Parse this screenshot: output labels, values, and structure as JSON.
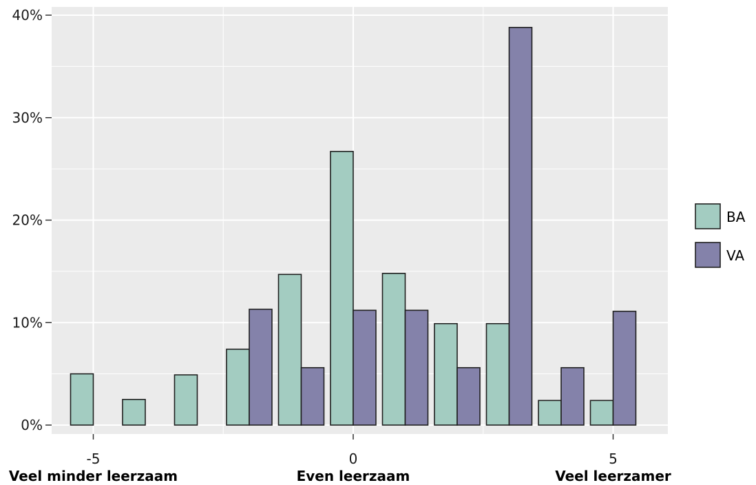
{
  "chart_data": {
    "type": "bar",
    "x": [
      -5,
      -4,
      -3,
      -2,
      -1,
      0,
      1,
      2,
      3,
      4,
      5
    ],
    "series": [
      {
        "name": "BA",
        "color": "#a3ccc1",
        "values": [
          5,
          2.5,
          4.9,
          7.4,
          14.7,
          26.7,
          14.8,
          9.9,
          9.9,
          2.4,
          2.4
        ]
      },
      {
        "name": "VA",
        "color": "#8482aa",
        "values": [
          0,
          0,
          0,
          11.3,
          5.6,
          11.2,
          11.2,
          5.6,
          38.8,
          5.6,
          11.1
        ]
      }
    ],
    "xticks": [
      {
        "value": -5,
        "label": "-5",
        "sublabel": "Veel minder leerzaam"
      },
      {
        "value": 0,
        "label": "0",
        "sublabel": "Even leerzaam"
      },
      {
        "value": 5,
        "label": "5",
        "sublabel": "Veel leerzamer"
      }
    ],
    "yticks": [
      {
        "value": 0,
        "label": "0%"
      },
      {
        "value": 10,
        "label": "10%"
      },
      {
        "value": 20,
        "label": "20%"
      },
      {
        "value": 30,
        "label": "30%"
      },
      {
        "value": 40,
        "label": "40%"
      }
    ],
    "ylim": [
      0,
      40.5
    ],
    "xlim": [
      -5.95,
      5.95
    ],
    "xlabel": "",
    "ylabel": "",
    "title": "",
    "grid": true,
    "panel_background": "#ebebeb",
    "legend_position": "right"
  }
}
